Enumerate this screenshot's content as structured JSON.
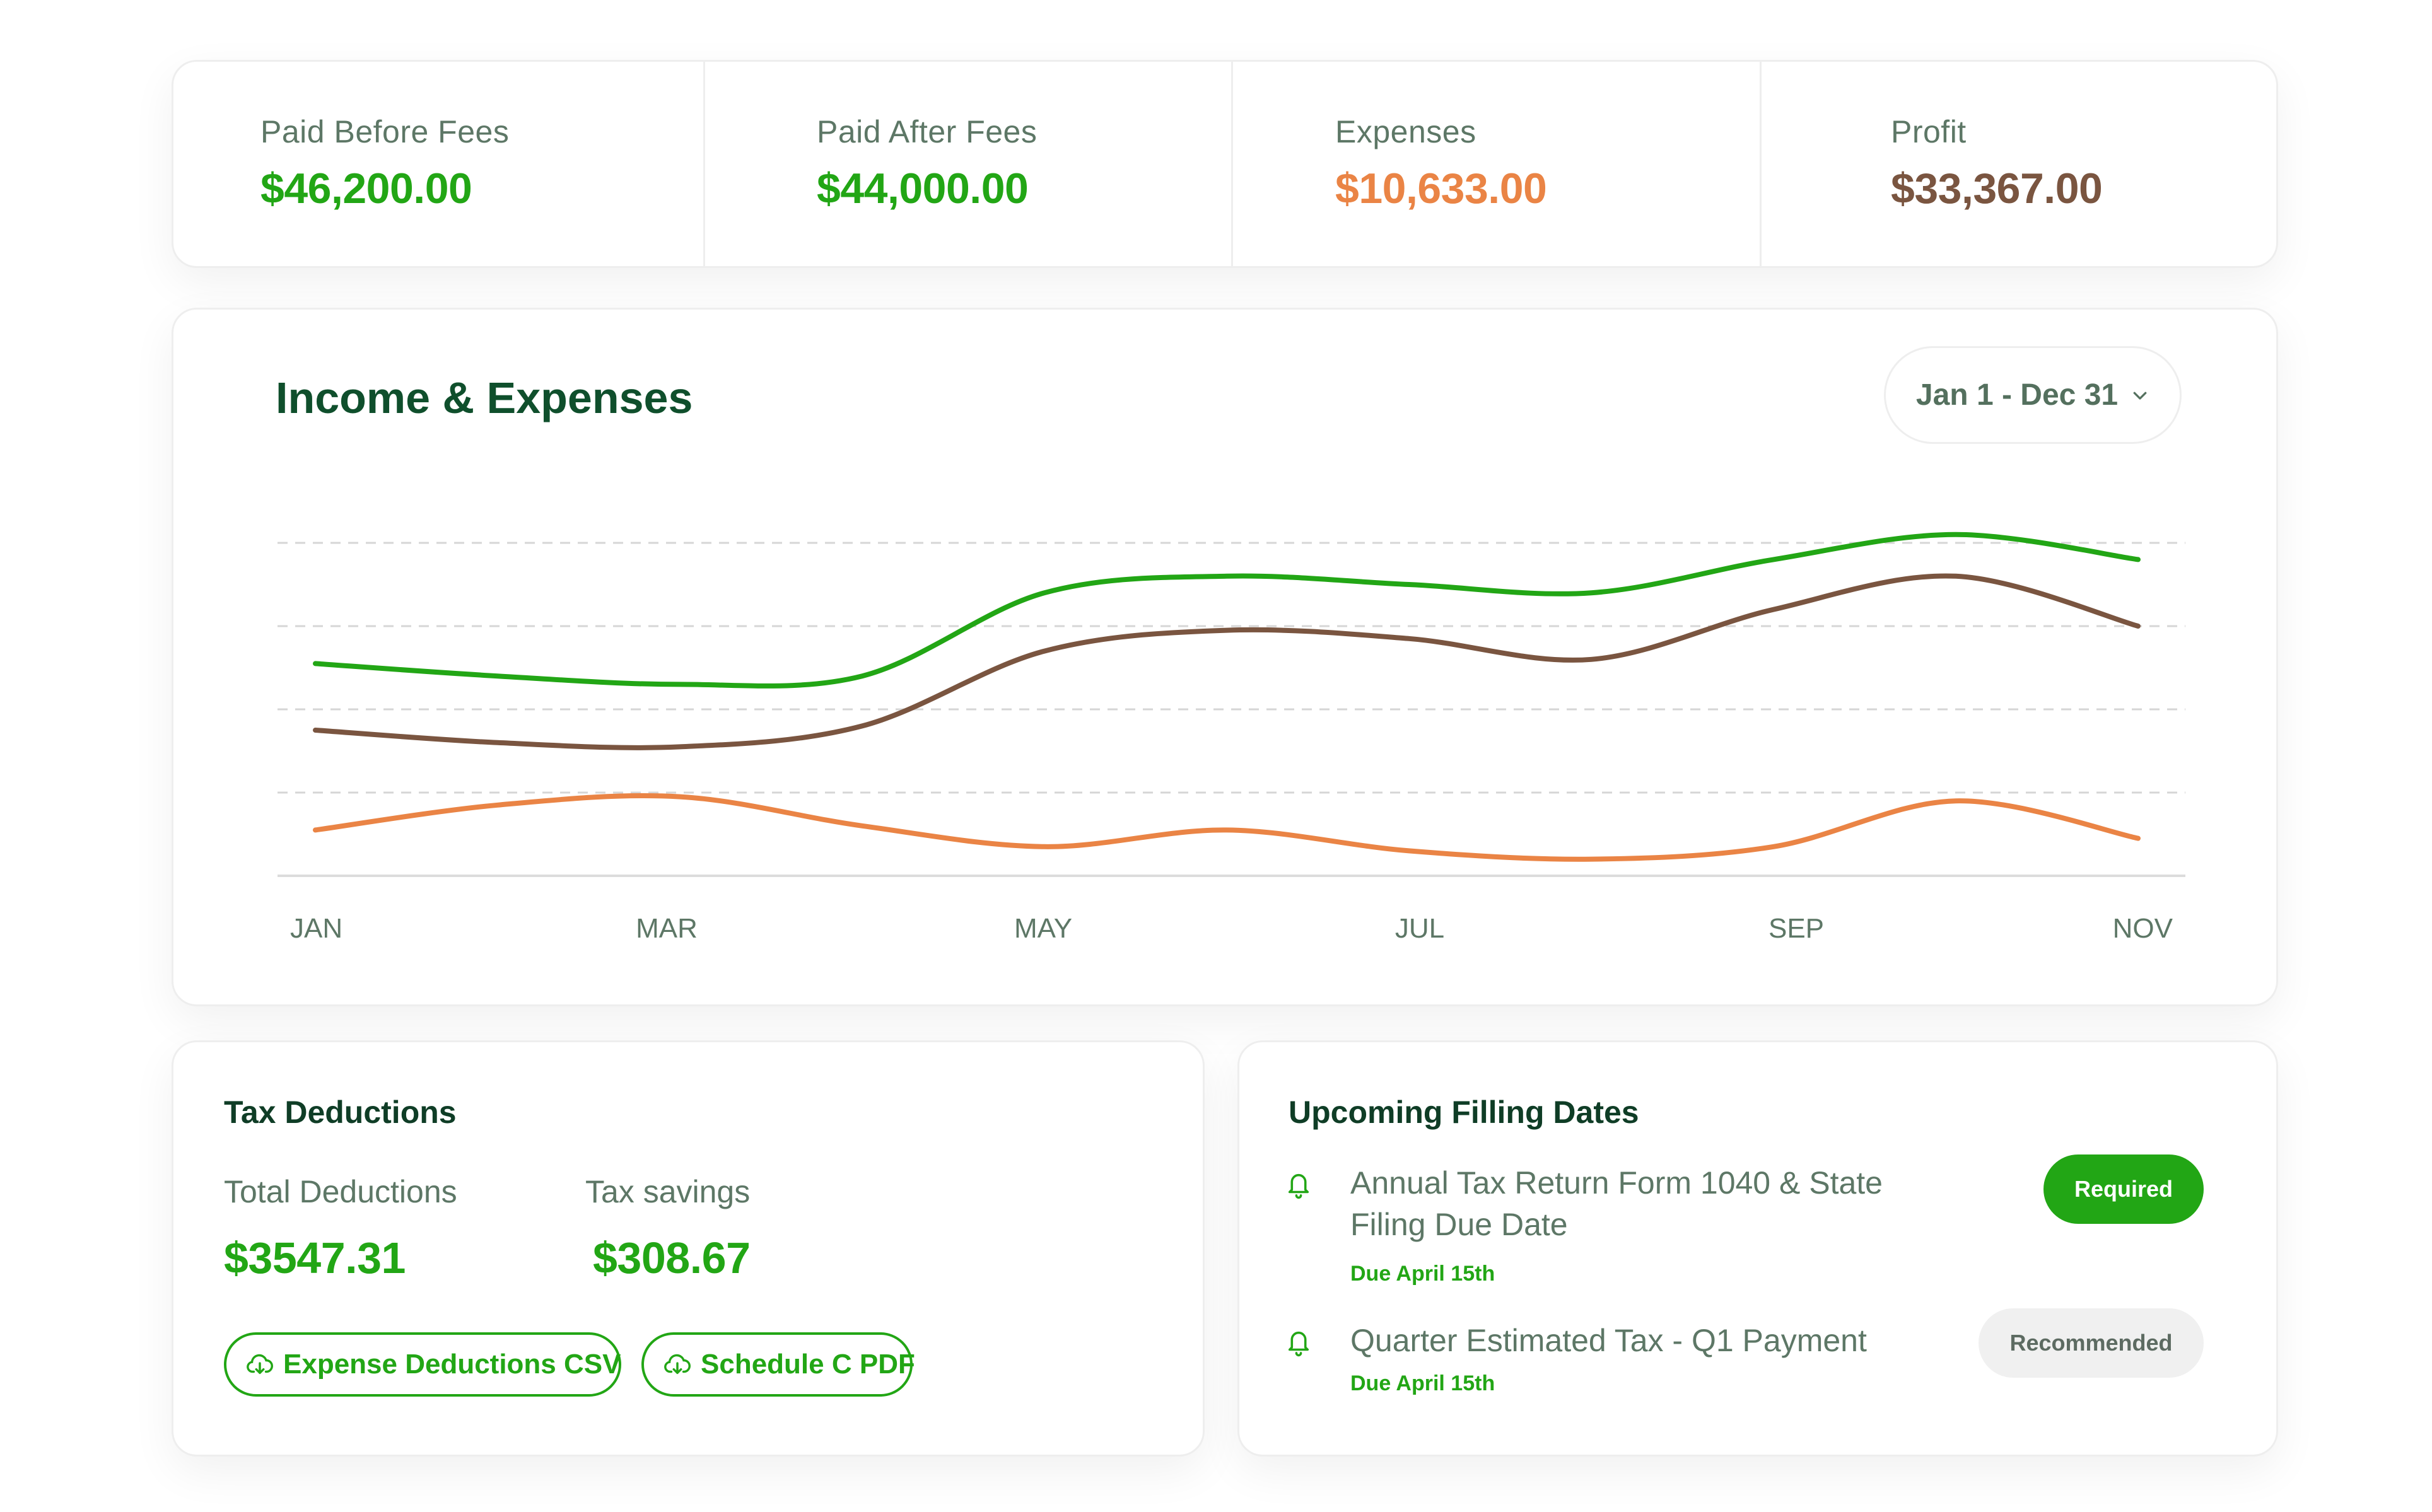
{
  "colors": {
    "income": "#22a615",
    "profit": "#7a5540",
    "expenses": "#ea8445",
    "title": "#0f4f2c",
    "muted": "#5d7766"
  },
  "kpis": [
    {
      "label": "Paid Before Fees",
      "value": "$46,200.00",
      "color": "#22a615"
    },
    {
      "label": "Paid After Fees",
      "value": "$44,000.00",
      "color": "#22a615"
    },
    {
      "label": "Expenses",
      "value": "$10,633.00",
      "color": "#ea8445"
    },
    {
      "label": "Profit",
      "value": "$33,367.00",
      "color": "#7a5540"
    }
  ],
  "chart": {
    "title": "Income & Expenses",
    "range_label": "Jan 1 - Dec 31",
    "range_icon": "chevron-down-icon"
  },
  "chart_data": {
    "type": "line",
    "title": "Income & Expenses",
    "x_ticks": [
      "JAN",
      "MAR",
      "MAY",
      "JUL",
      "SEP",
      "NOV"
    ],
    "x": [
      0,
      1,
      2,
      3,
      4,
      5,
      6,
      7,
      8,
      9,
      10
    ],
    "ylim": [
      0,
      4
    ],
    "grid": true,
    "series": [
      {
        "name": "Income",
        "color": "#22a615",
        "values": [
          2.55,
          2.4,
          2.3,
          2.4,
          3.4,
          3.6,
          3.5,
          3.4,
          3.8,
          4.1,
          3.8
        ]
      },
      {
        "name": "Profit",
        "color": "#7a5540",
        "values": [
          1.75,
          1.6,
          1.55,
          1.8,
          2.7,
          2.95,
          2.85,
          2.6,
          3.2,
          3.6,
          3.0
        ]
      },
      {
        "name": "Expenses",
        "color": "#ea8445",
        "values": [
          0.55,
          0.85,
          0.95,
          0.6,
          0.35,
          0.55,
          0.3,
          0.2,
          0.35,
          0.9,
          0.45
        ]
      }
    ]
  },
  "tax": {
    "title": "Tax Deductions",
    "total_label": "Total Deductions",
    "total_value": "$3547.31",
    "savings_label": "Tax savings",
    "savings_value": "$308.67",
    "buttons": [
      {
        "label": "Expense Deductions CSV",
        "icon": "cloud-download-icon"
      },
      {
        "label": "Schedule C PDF",
        "icon": "cloud-download-icon"
      }
    ]
  },
  "filing": {
    "title": "Upcoming Filling Dates",
    "items": [
      {
        "title": "Annual Tax Return Form 1040 & State Filing Due Date",
        "due": "Due April 15th",
        "badge": "Required",
        "icon": "bell-icon"
      },
      {
        "title": "Quarter Estimated Tax - Q1 Payment",
        "due": "Due April 15th",
        "badge": "Recommended",
        "icon": "bell-icon"
      }
    ]
  }
}
